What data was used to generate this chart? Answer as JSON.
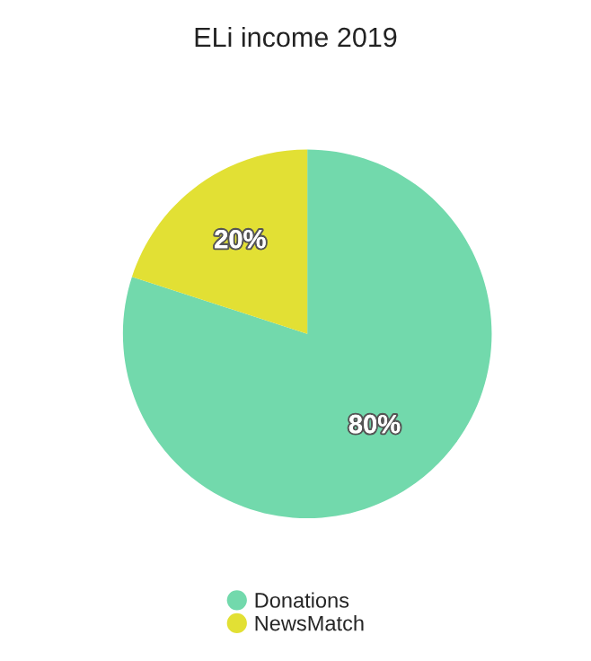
{
  "chart_data": {
    "type": "pie",
    "title": "ELi income 2019",
    "categories": [
      "Donations",
      "NewsMatch"
    ],
    "values": [
      80,
      20
    ],
    "colors": [
      "#72d9ac",
      "#e2e034"
    ],
    "value_labels": [
      "80%",
      "20%"
    ],
    "legend": "bottom"
  }
}
